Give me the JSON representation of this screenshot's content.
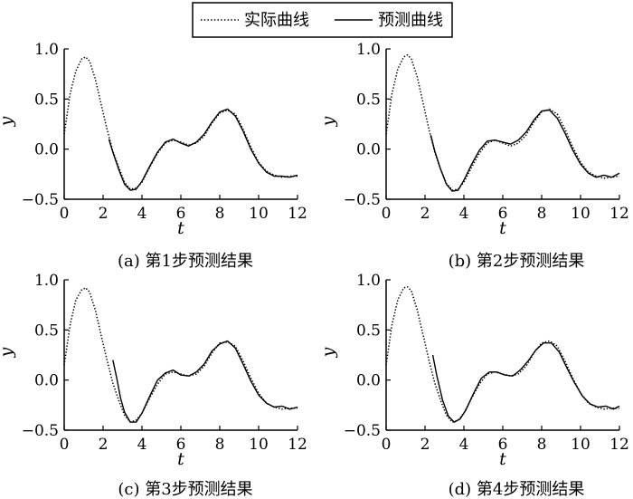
{
  "legend": {
    "entries": [
      {
        "name": "实际曲线",
        "style": "dotted"
      },
      {
        "name": "预测曲线",
        "style": "solid"
      }
    ],
    "placement": "top-center"
  },
  "colors": {
    "line": "#000000",
    "background": "#ffffff"
  },
  "chart_data": [
    {
      "type": "line",
      "caption": "(a) 第1步预测结果",
      "xlabel": "t",
      "ylabel": "y",
      "xlim": [
        0,
        12
      ],
      "ylim": [
        -0.5,
        1.0
      ],
      "xticks": [
        0,
        2,
        4,
        6,
        8,
        10,
        12
      ],
      "yticks": [
        -0.5,
        0.0,
        0.5,
        1.0
      ],
      "grid": false,
      "series": [
        {
          "name": "实际曲线",
          "style": "dotted",
          "x": [
            0,
            0.3,
            0.6,
            0.9,
            1.1,
            1.3,
            1.6,
            1.9,
            2.2,
            2.5,
            2.8,
            3.1,
            3.4,
            3.7,
            4.0,
            4.4,
            4.8,
            5.2,
            5.6,
            6.0,
            6.4,
            6.8,
            7.2,
            7.6,
            8.0,
            8.4,
            8.8,
            9.2,
            9.6,
            10.0,
            10.4,
            10.8,
            11.2,
            11.6,
            12.0
          ],
          "y": [
            0.15,
            0.55,
            0.78,
            0.9,
            0.92,
            0.88,
            0.7,
            0.45,
            0.2,
            -0.02,
            -0.18,
            -0.33,
            -0.4,
            -0.39,
            -0.33,
            -0.18,
            -0.04,
            0.06,
            0.09,
            0.07,
            0.04,
            0.06,
            0.13,
            0.26,
            0.36,
            0.39,
            0.35,
            0.2,
            0.02,
            -0.13,
            -0.22,
            -0.26,
            -0.28,
            -0.27,
            -0.27
          ]
        },
        {
          "name": "预测曲线",
          "style": "solid",
          "x": [
            2.3,
            2.5,
            2.8,
            3.1,
            3.4,
            3.7,
            4.0,
            4.4,
            4.8,
            5.2,
            5.6,
            6.0,
            6.4,
            6.8,
            7.2,
            7.6,
            8.0,
            8.4,
            8.8,
            9.2,
            9.6,
            10.0,
            10.4,
            10.8,
            11.2,
            11.6,
            12.0
          ],
          "y": [
            0.1,
            -0.03,
            -0.2,
            -0.35,
            -0.41,
            -0.4,
            -0.32,
            -0.17,
            -0.03,
            0.07,
            0.1,
            0.06,
            0.03,
            0.07,
            0.15,
            0.27,
            0.37,
            0.4,
            0.33,
            0.18,
            0.0,
            -0.14,
            -0.23,
            -0.27,
            -0.27,
            -0.28,
            -0.26
          ]
        }
      ]
    },
    {
      "type": "line",
      "caption": "(b) 第2步预测结果",
      "xlabel": "t",
      "ylabel": "y",
      "xlim": [
        0,
        12
      ],
      "ylim": [
        -0.5,
        1.0
      ],
      "xticks": [
        0,
        2,
        4,
        6,
        8,
        10,
        12
      ],
      "yticks": [
        -0.5,
        0.0,
        0.5,
        1.0
      ],
      "grid": false,
      "series": [
        {
          "name": "实际曲线",
          "style": "dotted",
          "x": [
            0,
            0.3,
            0.6,
            0.9,
            1.1,
            1.3,
            1.6,
            1.9,
            2.2,
            2.5,
            2.8,
            3.1,
            3.4,
            3.7,
            4.0,
            4.4,
            4.8,
            5.2,
            5.6,
            6.0,
            6.4,
            6.8,
            7.2,
            7.6,
            8.0,
            8.4,
            8.8,
            9.2,
            9.6,
            10.0,
            10.4,
            10.8,
            11.2,
            11.6,
            12.0
          ],
          "y": [
            0.15,
            0.55,
            0.8,
            0.92,
            0.94,
            0.9,
            0.72,
            0.46,
            0.2,
            -0.03,
            -0.2,
            -0.34,
            -0.41,
            -0.4,
            -0.33,
            -0.18,
            -0.04,
            0.06,
            0.09,
            0.06,
            0.03,
            0.06,
            0.14,
            0.27,
            0.37,
            0.4,
            0.35,
            0.2,
            0.02,
            -0.13,
            -0.23,
            -0.27,
            -0.29,
            -0.28,
            -0.27
          ]
        },
        {
          "name": "预测曲线",
          "style": "solid",
          "x": [
            2.3,
            2.5,
            2.8,
            3.1,
            3.4,
            3.7,
            4.0,
            4.4,
            4.8,
            5.2,
            5.6,
            6.0,
            6.4,
            6.8,
            7.2,
            7.6,
            8.0,
            8.4,
            8.8,
            9.2,
            9.6,
            10.0,
            10.4,
            10.8,
            11.2,
            11.6,
            12.0
          ],
          "y": [
            0.14,
            -0.02,
            -0.2,
            -0.35,
            -0.42,
            -0.41,
            -0.31,
            -0.15,
            -0.01,
            0.08,
            0.09,
            0.07,
            0.05,
            0.09,
            0.17,
            0.29,
            0.38,
            0.39,
            0.31,
            0.16,
            -0.01,
            -0.15,
            -0.24,
            -0.28,
            -0.26,
            -0.28,
            -0.24
          ]
        }
      ]
    },
    {
      "type": "line",
      "caption": "(c) 第3步预测结果",
      "xlabel": "t",
      "ylabel": "y",
      "xlim": [
        0,
        12
      ],
      "ylim": [
        -0.5,
        1.0
      ],
      "xticks": [
        0,
        2,
        4,
        6,
        8,
        10,
        12
      ],
      "yticks": [
        -0.5,
        0.0,
        0.5,
        1.0
      ],
      "grid": false,
      "series": [
        {
          "name": "实际曲线",
          "style": "dotted",
          "x": [
            0,
            0.3,
            0.6,
            0.9,
            1.1,
            1.3,
            1.6,
            1.9,
            2.2,
            2.5,
            2.8,
            3.1,
            3.4,
            3.7,
            4.0,
            4.4,
            4.8,
            5.2,
            5.6,
            6.0,
            6.4,
            6.8,
            7.2,
            7.6,
            8.0,
            8.4,
            8.8,
            9.2,
            9.6,
            10.0,
            10.4,
            10.8,
            11.2,
            11.6,
            12.0
          ],
          "y": [
            0.15,
            0.55,
            0.8,
            0.9,
            0.92,
            0.88,
            0.7,
            0.45,
            0.2,
            -0.03,
            -0.2,
            -0.35,
            -0.42,
            -0.4,
            -0.33,
            -0.18,
            -0.04,
            0.06,
            0.08,
            0.06,
            0.04,
            0.06,
            0.14,
            0.27,
            0.37,
            0.38,
            0.34,
            0.19,
            0.02,
            -0.13,
            -0.23,
            -0.27,
            -0.29,
            -0.28,
            -0.28
          ]
        },
        {
          "name": "预测曲线",
          "style": "solid",
          "x": [
            2.5,
            2.7,
            2.9,
            3.1,
            3.4,
            3.7,
            4.0,
            4.4,
            4.8,
            5.2,
            5.6,
            6.0,
            6.4,
            6.8,
            7.2,
            7.6,
            8.0,
            8.4,
            8.8,
            9.2,
            9.6,
            10.0,
            10.4,
            10.8,
            11.2,
            11.6,
            12.0
          ],
          "y": [
            0.2,
            0.02,
            -0.18,
            -0.32,
            -0.42,
            -0.42,
            -0.33,
            -0.16,
            0.0,
            0.07,
            0.1,
            0.05,
            0.04,
            0.08,
            0.16,
            0.29,
            0.36,
            0.39,
            0.32,
            0.16,
            -0.01,
            -0.15,
            -0.23,
            -0.27,
            -0.26,
            -0.29,
            -0.27
          ]
        }
      ]
    },
    {
      "type": "line",
      "caption": "(d) 第4步预测结果",
      "xlabel": "t",
      "ylabel": "y",
      "xlim": [
        0,
        12
      ],
      "ylim": [
        -0.5,
        1.0
      ],
      "xticks": [
        0,
        2,
        4,
        6,
        8,
        10,
        12
      ],
      "yticks": [
        -0.5,
        0.0,
        0.5,
        1.0
      ],
      "grid": false,
      "series": [
        {
          "name": "实际曲线",
          "style": "dotted",
          "x": [
            0,
            0.3,
            0.6,
            0.9,
            1.1,
            1.3,
            1.6,
            1.9,
            2.2,
            2.5,
            2.8,
            3.1,
            3.4,
            3.7,
            4.0,
            4.4,
            4.8,
            5.2,
            5.6,
            6.0,
            6.4,
            6.8,
            7.2,
            7.6,
            8.0,
            8.4,
            8.8,
            9.2,
            9.6,
            10.0,
            10.4,
            10.8,
            11.2,
            11.6,
            12.0
          ],
          "y": [
            0.15,
            0.55,
            0.8,
            0.92,
            0.93,
            0.89,
            0.7,
            0.45,
            0.2,
            -0.03,
            -0.2,
            -0.35,
            -0.42,
            -0.4,
            -0.33,
            -0.18,
            -0.04,
            0.06,
            0.08,
            0.06,
            0.04,
            0.06,
            0.14,
            0.27,
            0.37,
            0.39,
            0.34,
            0.19,
            0.02,
            -0.13,
            -0.23,
            -0.27,
            -0.29,
            -0.28,
            -0.28
          ]
        },
        {
          "name": "预测曲线",
          "style": "solid",
          "x": [
            2.4,
            2.6,
            2.9,
            3.2,
            3.5,
            3.8,
            4.1,
            4.5,
            4.9,
            5.3,
            5.7,
            6.1,
            6.5,
            6.9,
            7.3,
            7.7,
            8.1,
            8.5,
            8.9,
            9.3,
            9.7,
            10.1,
            10.5,
            10.9,
            11.3,
            11.7,
            12.0
          ],
          "y": [
            0.25,
            0.05,
            -0.2,
            -0.36,
            -0.42,
            -0.39,
            -0.3,
            -0.13,
            0.02,
            0.08,
            0.08,
            0.05,
            0.04,
            0.1,
            0.19,
            0.3,
            0.37,
            0.37,
            0.28,
            0.12,
            -0.03,
            -0.16,
            -0.24,
            -0.27,
            -0.26,
            -0.29,
            -0.26
          ]
        }
      ]
    }
  ]
}
